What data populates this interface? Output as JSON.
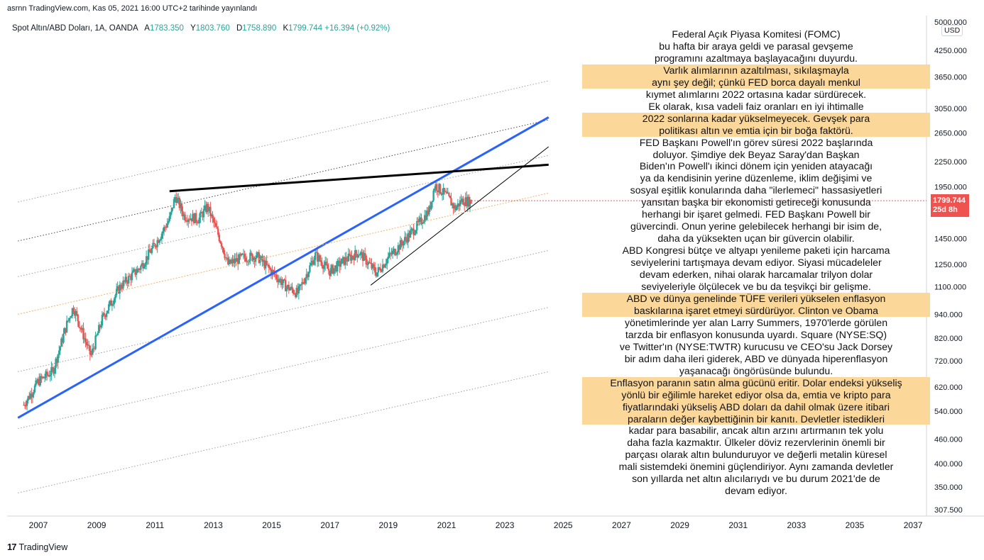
{
  "header": {
    "publish_line": "asrnn TradingView.com, Kas 05, 2021 16:00 UTC+2 tarihinde yayınlandı"
  },
  "legend": {
    "symbol": "Spot Altın/ABD Doları, 1A, OANDA",
    "open_label": "A",
    "open": "1783.350",
    "high_label": "Y",
    "high": "1803.760",
    "low_label": "D",
    "low": "1758.890",
    "close_label": "K",
    "close": "1799.744",
    "change": "+16.394 (+0.92%)"
  },
  "price_tag": {
    "price": "1799.744",
    "countdown": "25d 8h"
  },
  "currency": "USD",
  "footer": {
    "brand": "TradingView",
    "logo": "17"
  },
  "colors": {
    "up": "#26a69a",
    "down": "#ef5350",
    "trend_blue": "#2962ff",
    "resistance": "#000000",
    "highlight": "#fbd79a",
    "fib_orange": "#f6b26b"
  },
  "annotation": [
    {
      "t": "Federal Açık Piyasa Komitesi (FOMC)\nbu hafta bir araya geldi ve parasal gevşeme\nprogramını azaltmaya başlayacağını duyurdu.",
      "hl": false
    },
    {
      "t": "Varlık alımlarının azaltılması, sıkılaşmayla\naynı şey değil; çünkü FED borca dayalı menkul",
      "hl": true
    },
    {
      "t": "kıymet alımlarını 2022 ortasına kadar sürdürecek.\nEk olarak, kısa vadeli faiz oranları en iyi ihtimalle",
      "hl": false
    },
    {
      "t": "2022 sonlarına kadar yükselmeyecek. Gevşek para\npolitikası altın ve emtia için bir boğa faktörü.",
      "hl": true
    },
    {
      "t": "FED Başkanı Powell'ın görev süresi 2022 başlarında\ndoluyor. Şimdiye dek Beyaz Saray'dan Başkan\nBiden'ın Powell'ı ikinci dönem için yeniden atayacağı\nya da kendisinin yerine düzenleme, iklim değişimi ve\nsosyal eşitlik konularında daha \"ilerlemeci\" hassasiyetleri\nyansıtan başka bir ekonomisti getireceği konusunda\nherhangi bir işaret gelmedi. FED Başkanı Powell bir\ngüvercindi. Onun yerine gelebilecek herhangi bir isim de,\ndaha da yüksekten uçan bir güvercin olabilir.\nABD Kongresi bütçe ve altyapı yenileme paketi için harcama\nseviyelerini tartışmaya devam ediyor. Siyasi mücadeleler\ndevam ederken, nihai olarak harcamalar trilyon dolar\nseviyeleriyle ölçülecek ve bu da teşvikçi bir gelişme.",
      "hl": false
    },
    {
      "t": "ABD ve dünya genelinde TÜFE verileri yükselen enflasyon\nbaskılarına işaret etmeyi sürdürüyor. Clinton ve Obama",
      "hl": true
    },
    {
      "t": "yönetimlerinde yer alan Larry Summers, 1970'lerde görülen\ntarzda bir enflasyon konusunda uyardı. Square (NYSE:SQ)\nve Twitter'ın (NYSE:TWTR) kurucusu ve CEO'su Jack Dorsey\nbir adım daha ileri giderek, ABD ve dünyada hiperenflasyon\nyaşanacağı öngörüsünde bulundu.",
      "hl": false
    },
    {
      "t": "Enflasyon paranın satın alma gücünü eritir. Dolar endeksi yükseliş\nyönlü bir eğilimle hareket ediyor olsa da, emtia ve kripto para\nfiyatlarındaki yükseliş ABD doları da dahil olmak üzere itibari\nparaların değer kaybettiğinin bir kanıtı. Devletler istedikleri",
      "hl": true
    },
    {
      "t": "kadar para basabilir, ancak altın arzını artırmanın tek yolu\ndaha fazla kazmaktır. Ülkeler döviz rezervlerinin önemli bir\nparçası olarak altın bulunduruyor ve değerli metalin küresel\nmali sistemdeki önemini güçlendiriyor. Aynı zamanda devletler\nson yıllarda net altın alıcılarıydı ve bu durum 2021'de de\ndevam ediyor.",
      "hl": false
    }
  ],
  "chart_data": {
    "type": "line",
    "subtype": "candlestick-approximation",
    "scale": "log",
    "ylim": [
      300,
      5000
    ],
    "xlim": [
      2006.3,
      2037.5
    ],
    "y_ticks": [
      "5000.000",
      "4250.000",
      "3650.000",
      "3050.000",
      "2650.000",
      "2250.000",
      "1950.000",
      "1450.000",
      "1250.000",
      "1100.000",
      "940.000",
      "820.000",
      "720.000",
      "620.000",
      "540.000",
      "460.000",
      "400.000",
      "350.000",
      "307.500"
    ],
    "x_ticks": [
      "2007",
      "2009",
      "2011",
      "2013",
      "2015",
      "2017",
      "2019",
      "2021",
      "2023",
      "2025",
      "2027",
      "2029",
      "2031",
      "2033",
      "2035",
      "2037"
    ],
    "price_path": [
      [
        2006.5,
        560
      ],
      [
        2007.0,
        640
      ],
      [
        2007.5,
        680
      ],
      [
        2008.0,
        900
      ],
      [
        2008.2,
        980
      ],
      [
        2008.8,
        740
      ],
      [
        2009.2,
        920
      ],
      [
        2009.8,
        1100
      ],
      [
        2010.5,
        1230
      ],
      [
        2011.0,
        1400
      ],
      [
        2011.5,
        1620
      ],
      [
        2011.7,
        1850
      ],
      [
        2012.0,
        1650
      ],
      [
        2012.5,
        1620
      ],
      [
        2012.8,
        1740
      ],
      [
        2013.3,
        1400
      ],
      [
        2013.5,
        1250
      ],
      [
        2014.0,
        1300
      ],
      [
        2014.5,
        1310
      ],
      [
        2015.0,
        1200
      ],
      [
        2015.5,
        1100
      ],
      [
        2015.9,
        1060
      ],
      [
        2016.5,
        1320
      ],
      [
        2017.0,
        1200
      ],
      [
        2017.5,
        1280
      ],
      [
        2018.0,
        1340
      ],
      [
        2018.6,
        1190
      ],
      [
        2019.0,
        1300
      ],
      [
        2019.5,
        1420
      ],
      [
        2020.0,
        1560
      ],
      [
        2020.4,
        1700
      ],
      [
        2020.6,
        1970
      ],
      [
        2021.0,
        1850
      ],
      [
        2021.3,
        1720
      ],
      [
        2021.5,
        1800
      ],
      [
        2021.85,
        1790
      ]
    ],
    "lines": [
      {
        "name": "blue-trendline",
        "points": [
          [
            2006.3,
            520
          ],
          [
            2024.5,
            2900
          ]
        ]
      },
      {
        "name": "resistance",
        "points": [
          [
            2011.5,
            1900
          ],
          [
            2024.5,
            2210
          ]
        ]
      },
      {
        "name": "support",
        "points": [
          [
            2018.4,
            1110
          ],
          [
            2024.5,
            2450
          ]
        ]
      },
      {
        "name": "fib-orange",
        "points": [
          [
            2006.3,
            940
          ],
          [
            2024.5,
            1880
          ]
        ]
      }
    ],
    "last": 1799.744
  }
}
